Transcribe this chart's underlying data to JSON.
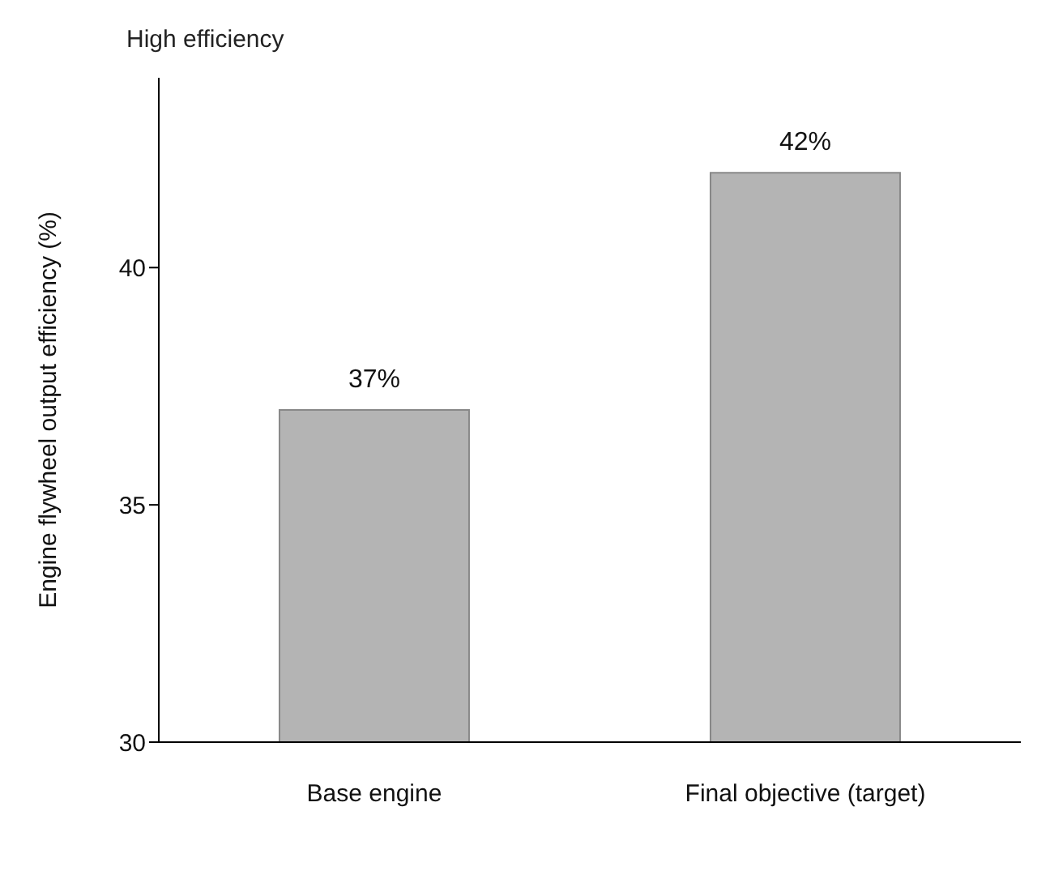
{
  "chart_data": {
    "type": "bar",
    "ylabel": "Engine flywheel output efficiency (%)",
    "annotations": [
      "High efficiency"
    ],
    "categories": [
      "Base engine",
      "Final objective (target)"
    ],
    "values": [
      37,
      42
    ],
    "value_labels": [
      "37%",
      "42%"
    ],
    "color": "#b4b4b4",
    "ylim": [
      30,
      44
    ],
    "yticks": [
      30,
      35,
      40
    ],
    "grid": false
  }
}
